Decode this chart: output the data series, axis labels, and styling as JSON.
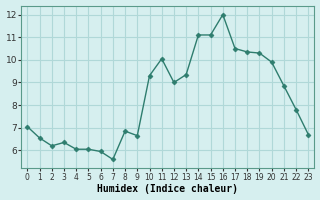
{
  "x": [
    0,
    1,
    2,
    3,
    4,
    5,
    6,
    7,
    8,
    9,
    10,
    11,
    12,
    13,
    14,
    15,
    16,
    17,
    18,
    19,
    20,
    21,
    22,
    23
  ],
  "y": [
    7.05,
    6.55,
    6.2,
    6.35,
    6.05,
    6.05,
    5.95,
    5.6,
    6.85,
    6.65,
    9.3,
    10.05,
    9.0,
    9.35,
    11.1,
    11.1,
    12.0,
    10.5,
    10.35,
    10.3,
    9.9,
    8.85,
    7.8,
    6.7
  ],
  "line_color": "#2e7d6e",
  "marker_color": "#2e7d6e",
  "bg_color": "#d6efef",
  "grid_color": "#b0d8d8",
  "xlabel": "Humidex (Indice chaleur)",
  "xlim": [
    -0.5,
    23.5
  ],
  "ylim": [
    5.2,
    12.4
  ],
  "yticks": [
    6,
    7,
    8,
    9,
    10,
    11,
    12
  ],
  "xticks": [
    0,
    1,
    2,
    3,
    4,
    5,
    6,
    7,
    8,
    9,
    10,
    11,
    12,
    13,
    14,
    15,
    16,
    17,
    18,
    19,
    20,
    21,
    22,
    23
  ]
}
